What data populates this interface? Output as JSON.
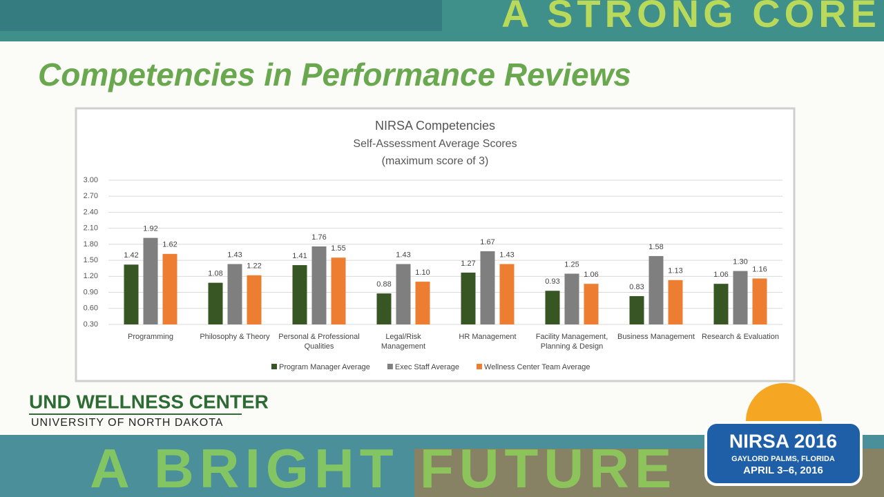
{
  "slide": {
    "banner_top": "A STRONG CORE",
    "heading": "Competencies in Performance Reviews",
    "logo_name": "UND WELLNESS CENTER",
    "logo_sub": "UNIVERSITY OF NORTH DAKOTA",
    "banner_bottom": "A BRIGHT FUTURE",
    "badge_title": "NIRSA 2016",
    "badge_place": "GAYLORD PALMS, FLORIDA",
    "badge_date": "APRIL 3–6, 2016"
  },
  "chart_data": {
    "type": "bar",
    "title": "NIRSA Competencies",
    "subtitle": [
      "Self-Assessment Average Scores",
      "(maximum score of 3)"
    ],
    "categories": [
      "Programming",
      "Philosophy & Theory",
      "Personal & Professional Qualities",
      "Legal/Risk Management",
      "HR Management",
      "Facility Management, Planning & Design",
      "Business Management",
      "Research & Evaluation"
    ],
    "series": [
      {
        "name": "Program Manager Average",
        "color": "#375623",
        "values": [
          1.42,
          1.08,
          1.41,
          0.88,
          1.27,
          0.93,
          0.83,
          1.06
        ],
        "value_labels": [
          "1.42",
          "1.08",
          "1.41",
          "0.88",
          "1.27",
          "0.93",
          "0.83",
          "1.06"
        ]
      },
      {
        "name": "Exec Staff Average",
        "color": "#7f7f7f",
        "values": [
          1.92,
          1.43,
          1.76,
          1.43,
          1.67,
          1.25,
          1.58,
          1.3
        ],
        "value_labels": [
          "1.92",
          "1.43",
          "1.76",
          "1.43",
          "1.67",
          "1.25",
          "1.58",
          "1.30"
        ]
      },
      {
        "name": "Wellness Center Team Average",
        "color": "#ed7d31",
        "values": [
          1.62,
          1.22,
          1.55,
          1.1,
          1.43,
          1.06,
          1.13,
          1.16
        ],
        "value_labels": [
          "1.62",
          "1.22",
          "1.55",
          "1.10",
          "1.43",
          "1.06",
          "1.13",
          "1.16"
        ]
      }
    ],
    "ylim": [
      0.3,
      3.0
    ],
    "yticks": [
      {
        "value": 0.3,
        "label": "0.30"
      },
      {
        "value": 0.6,
        "label": "0.60"
      },
      {
        "value": 0.9,
        "label": "0.90"
      },
      {
        "value": 1.2,
        "label": "1.20"
      },
      {
        "value": 1.5,
        "label": "1.50"
      },
      {
        "value": 1.8,
        "label": "1.80"
      },
      {
        "value": 2.1,
        "label": "2.10"
      },
      {
        "value": 2.4,
        "label": "2.40"
      },
      {
        "value": 2.7,
        "label": "2.70"
      },
      {
        "value": 3.0,
        "label": "3.00"
      }
    ],
    "grid": true,
    "legend": "bottom"
  }
}
